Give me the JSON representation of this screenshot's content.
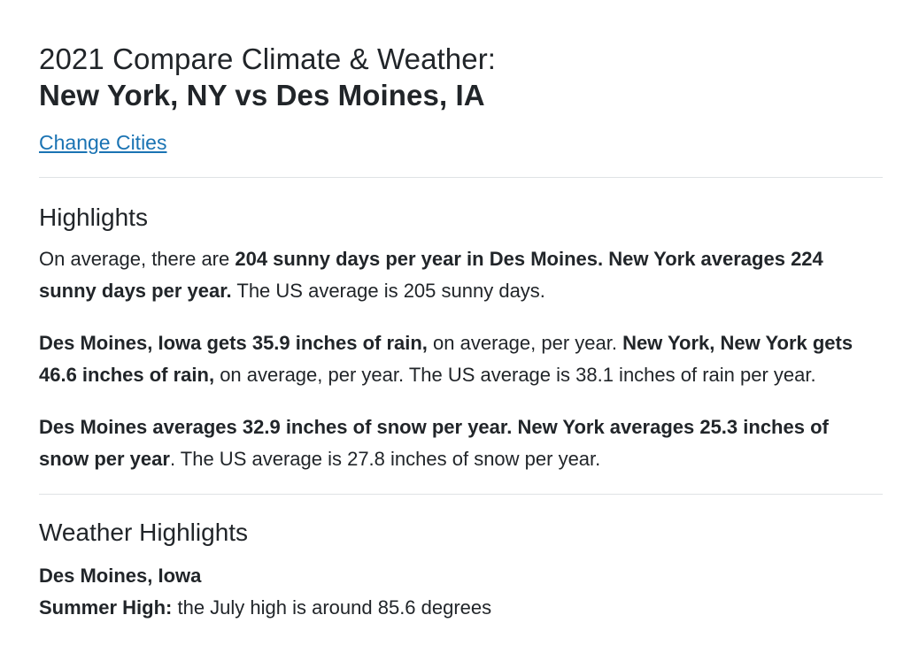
{
  "header": {
    "title_line1": "2021 Compare Climate & Weather:",
    "title_line2": "New York, NY vs Des Moines, IA",
    "change_cities": "Change Cities"
  },
  "highlights": {
    "heading": "Highlights",
    "sunny": {
      "pre": "On average, there are ",
      "bold": "204 sunny days per year in Des Moines. New York averages 224 sunny days per year.",
      "post": " The US average is 205 sunny days."
    },
    "rain": {
      "bold1": "Des Moines, Iowa gets 35.9 inches of rain,",
      "mid": " on average, per year. ",
      "bold2": "New York, New York gets 46.6 inches of rain,",
      "post": " on average, per year. The US average is 38.1 inches of rain per year."
    },
    "snow": {
      "bold": "Des Moines averages 32.9 inches of snow per year. New York averages 25.3 inches of snow per year",
      "post": ". The US average is 27.8 inches of snow per year."
    }
  },
  "weather_highlights": {
    "heading": "Weather Highlights",
    "city": "Des Moines, Iowa",
    "summer_label": "Summer High:",
    "summer_text": " the July high is around 85.6 degrees"
  }
}
